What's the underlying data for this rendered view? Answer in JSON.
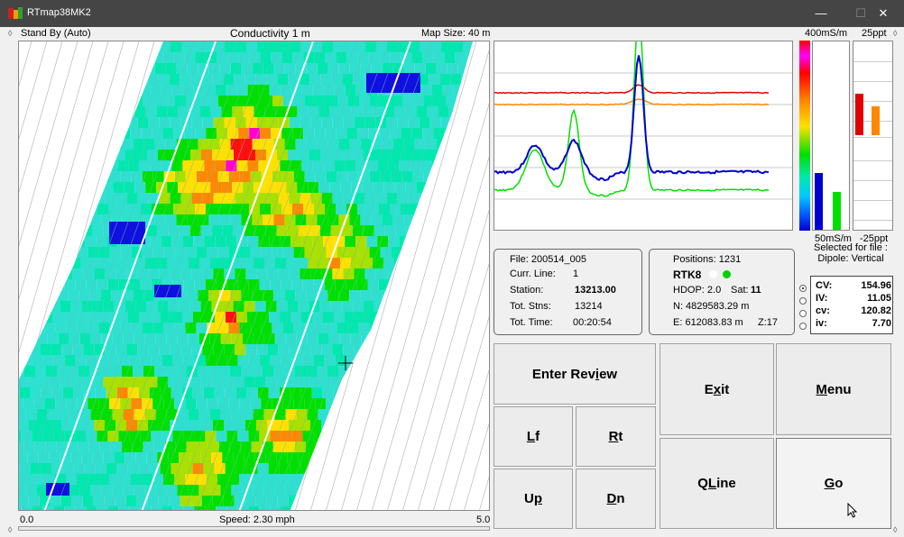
{
  "window": {
    "title": "RTmap38MK2",
    "min_glyph": "—",
    "max_glyph": "☐",
    "close_glyph": "✕"
  },
  "map": {
    "status": "Stand By (Auto)",
    "title": "Conductivity 1 m",
    "map_size": "Map Size:  40 m",
    "scale_min": "0.0",
    "speed": "Speed:  2.30 mph",
    "scale_max": "5.0"
  },
  "scales": {
    "cond_top": "400mS/m",
    "cond_bottom": "50mS/m",
    "ppt_top": "25ppt",
    "ppt_bottom": "-25ppt",
    "selected_label": "Selected for file :",
    "selected_value": "Dipole: Vertical"
  },
  "meters": {
    "cond_bars": [
      {
        "series": "CV",
        "color": "#0000d0",
        "fraction": 0.3
      },
      {
        "series": "cv",
        "color": "#00e000",
        "fraction": 0.2
      }
    ],
    "ppt_bars": [
      {
        "series": "IV",
        "color": "#e00000",
        "value": 11.05
      },
      {
        "series": "iv",
        "color": "#ff8800",
        "value": 7.7
      }
    ]
  },
  "file_info": {
    "file": "File: 200514_005",
    "curr_line_label": "Curr. Line:",
    "curr_line_value": "1",
    "station_label": "Station:",
    "station_value": "13213.00",
    "tot_stns_label": "Tot. Stns:",
    "tot_stns_value": "13214",
    "tot_time_label": "Tot. Time:",
    "tot_time_value": "00:20:54"
  },
  "gps_info": {
    "positions": "Positions:  1231",
    "fix": "RTK8",
    "hdop": "HDOP: 2.0",
    "sat_label": "Sat:",
    "sat_value": "11",
    "north": "N:  4829583.29 m",
    "east": "E:  612083.83 m",
    "zone": "Z:17",
    "dot_colors": [
      "#ffffff",
      "#00d000"
    ]
  },
  "readouts": [
    {
      "key": "CV:",
      "value": "154.96",
      "selected": true
    },
    {
      "key": "IV:",
      "value": "11.05",
      "selected": false
    },
    {
      "key": "cv:",
      "value": "120.82",
      "selected": false
    },
    {
      "key": "iv:",
      "value": "7.70",
      "selected": false
    }
  ],
  "buttons": {
    "enter_review_pre": "Enter Rev",
    "enter_review_u": "i",
    "enter_review_post": "ew",
    "exit_pre": "E",
    "exit_u": "x",
    "exit_post": "it",
    "menu_u": "M",
    "menu_post": "enu",
    "lf_u": "L",
    "lf_post": "f",
    "rt_u": "R",
    "rt_post": "t",
    "qline_pre": "Q",
    "qline_u": "L",
    "qline_post": "ine",
    "go_u": "G",
    "go_post": "o",
    "up_pre": "U",
    "up_u": "p",
    "dn_u": "D",
    "dn_post": "n"
  },
  "plot": {
    "series": [
      {
        "name": "CV",
        "color": "#0000d0"
      },
      {
        "name": "cv",
        "color": "#00e000"
      },
      {
        "name": "IV",
        "color": "#e00000"
      },
      {
        "name": "iv",
        "color": "#ff8800"
      }
    ]
  }
}
